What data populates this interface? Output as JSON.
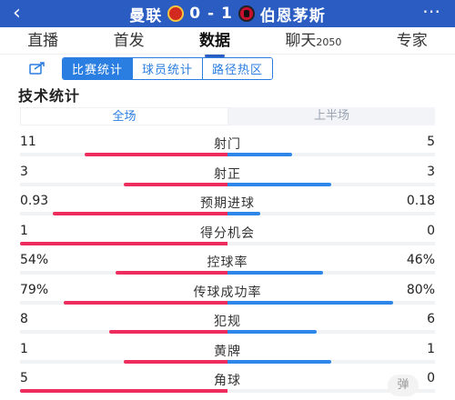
{
  "header": {
    "back_icon": "chevron-left-icon",
    "home_team": "曼联",
    "score": "0 - 1",
    "away_team": "伯恩茅斯",
    "more_icon": "more-dots-icon",
    "colors": {
      "header_bg": "#2a5cc2"
    }
  },
  "main_tabs": [
    {
      "label": "直播",
      "sub": "",
      "active": false
    },
    {
      "label": "首发",
      "sub": "",
      "active": false
    },
    {
      "label": "数据",
      "sub": "",
      "active": true
    },
    {
      "label": "聊天",
      "sub": "2050",
      "active": false
    },
    {
      "label": "专家",
      "sub": "",
      "active": false
    }
  ],
  "sub_tabs": {
    "icon": "share-icon",
    "items": [
      {
        "label": "比赛统计",
        "active": true
      },
      {
        "label": "球员统计",
        "active": false
      },
      {
        "label": "路径热区",
        "active": false
      }
    ]
  },
  "section": {
    "title": "技术统计"
  },
  "half_toggle": {
    "options": [
      {
        "label": "全场",
        "active": true
      },
      {
        "label": "上半场",
        "active": false
      }
    ]
  },
  "stats": [
    {
      "label": "射门",
      "home": "11",
      "away": "5",
      "home_share": 0.69,
      "away_share": 0.31
    },
    {
      "label": "射正",
      "home": "3",
      "away": "3",
      "home_share": 0.5,
      "away_share": 0.5
    },
    {
      "label": "预期进球",
      "home": "0.93",
      "away": "0.18",
      "home_share": 0.84,
      "away_share": 0.16
    },
    {
      "label": "得分机会",
      "home": "1",
      "away": "0",
      "home_share": 1.0,
      "away_share": 0.0
    },
    {
      "label": "控球率",
      "home": "54%",
      "away": "46%",
      "home_share": 0.54,
      "away_share": 0.46
    },
    {
      "label": "传球成功率",
      "home": "79%",
      "away": "80%",
      "home_share": 0.79,
      "away_share": 0.8
    },
    {
      "label": "犯规",
      "home": "8",
      "away": "6",
      "home_share": 0.57,
      "away_share": 0.43
    },
    {
      "label": "黄牌",
      "home": "1",
      "away": "1",
      "home_share": 0.5,
      "away_share": 0.5
    },
    {
      "label": "角球",
      "home": "5",
      "away": "0",
      "home_share": 1.0,
      "away_share": 0.0
    }
  ],
  "danmu": {
    "label": "弹"
  },
  "colors": {
    "home_bar": "#ee2d5e",
    "away_bar": "#2e87e8",
    "accent": "#2a7de1"
  }
}
